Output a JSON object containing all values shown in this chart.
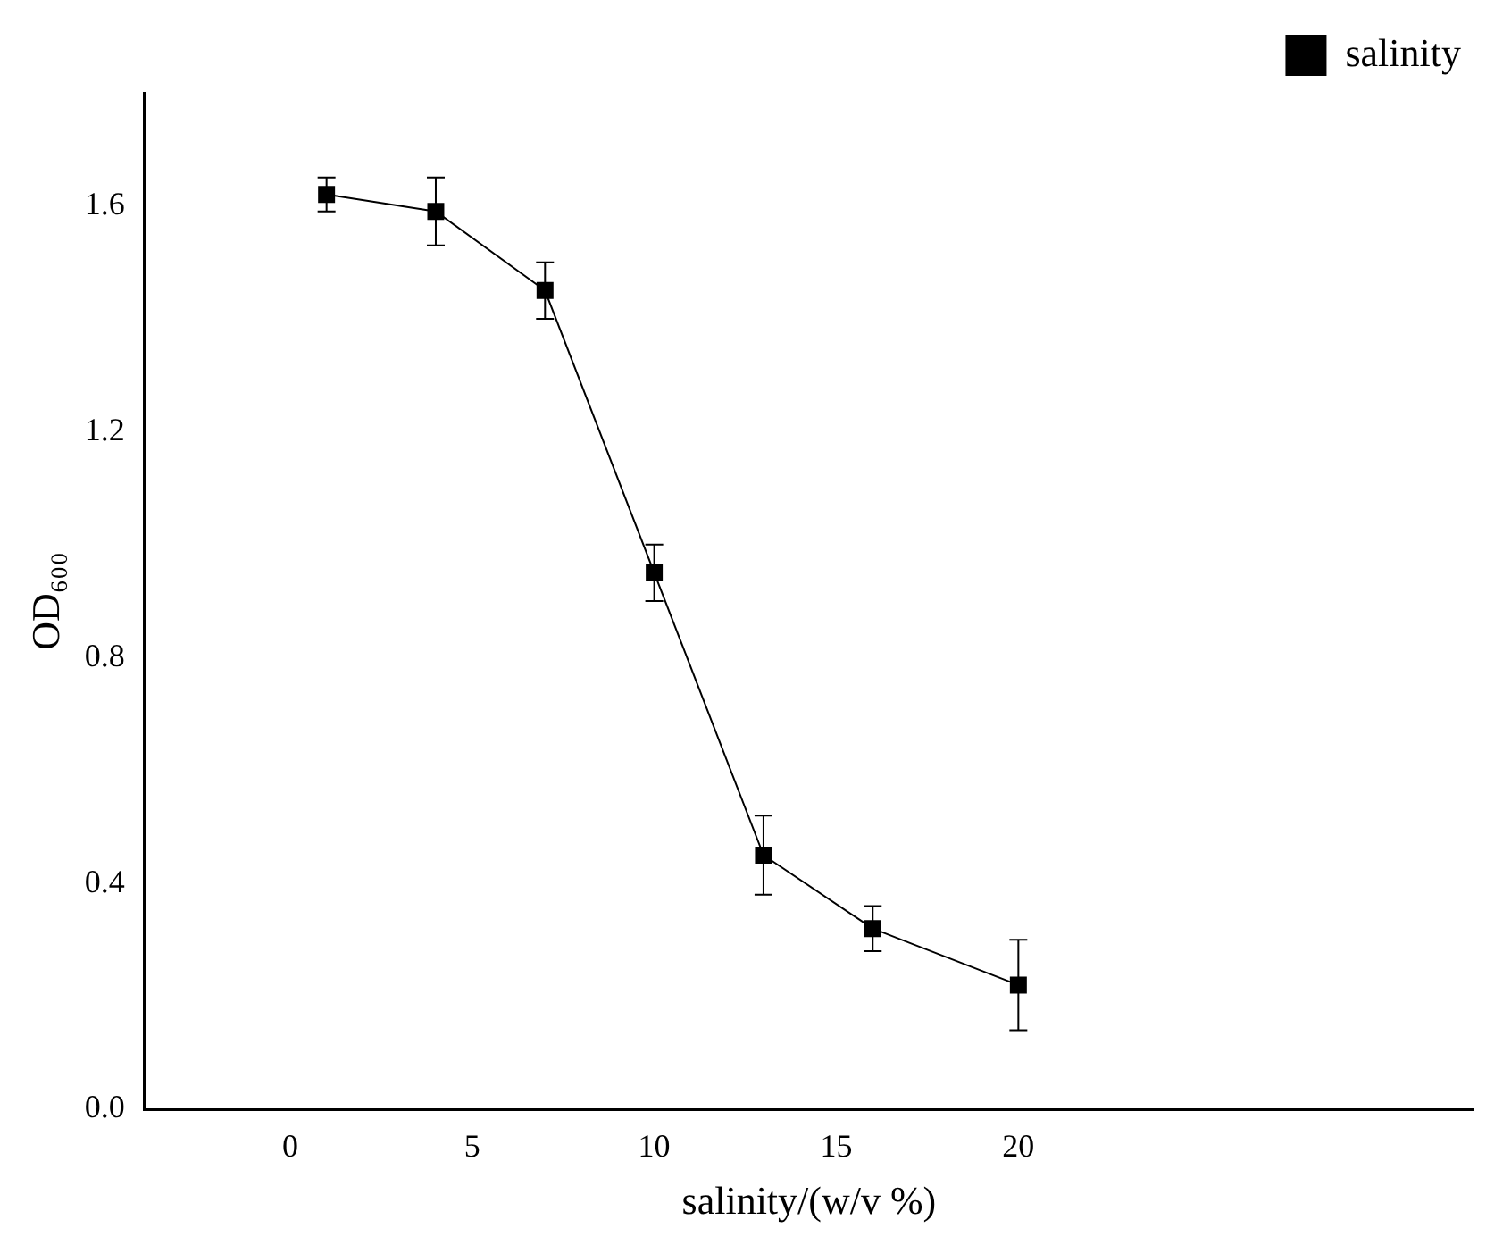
{
  "chart_data": {
    "type": "line",
    "xlabel": "salinity/(w/v %)",
    "ylabel": "OD₆₀₀",
    "x": [
      1,
      4,
      7,
      10,
      13,
      16,
      20
    ],
    "series": [
      {
        "name": "salinity",
        "color": "#000000",
        "values": [
          1.62,
          1.59,
          1.45,
          0.95,
          0.45,
          0.32,
          0.22
        ],
        "errors": [
          0.03,
          0.06,
          0.05,
          0.05,
          0.07,
          0.04,
          0.08
        ]
      }
    ],
    "xlim": [
      -4,
      32.5
    ],
    "xticks": [
      0,
      5,
      10,
      15,
      20
    ],
    "ylim": [
      0,
      1.8
    ],
    "yticks": [
      {
        "value": 0,
        "label": "0.0"
      },
      0.4,
      0.8,
      1.2,
      1.6
    ],
    "grid": false,
    "legend": "top right",
    "marker": "square",
    "line_style": "solid"
  }
}
